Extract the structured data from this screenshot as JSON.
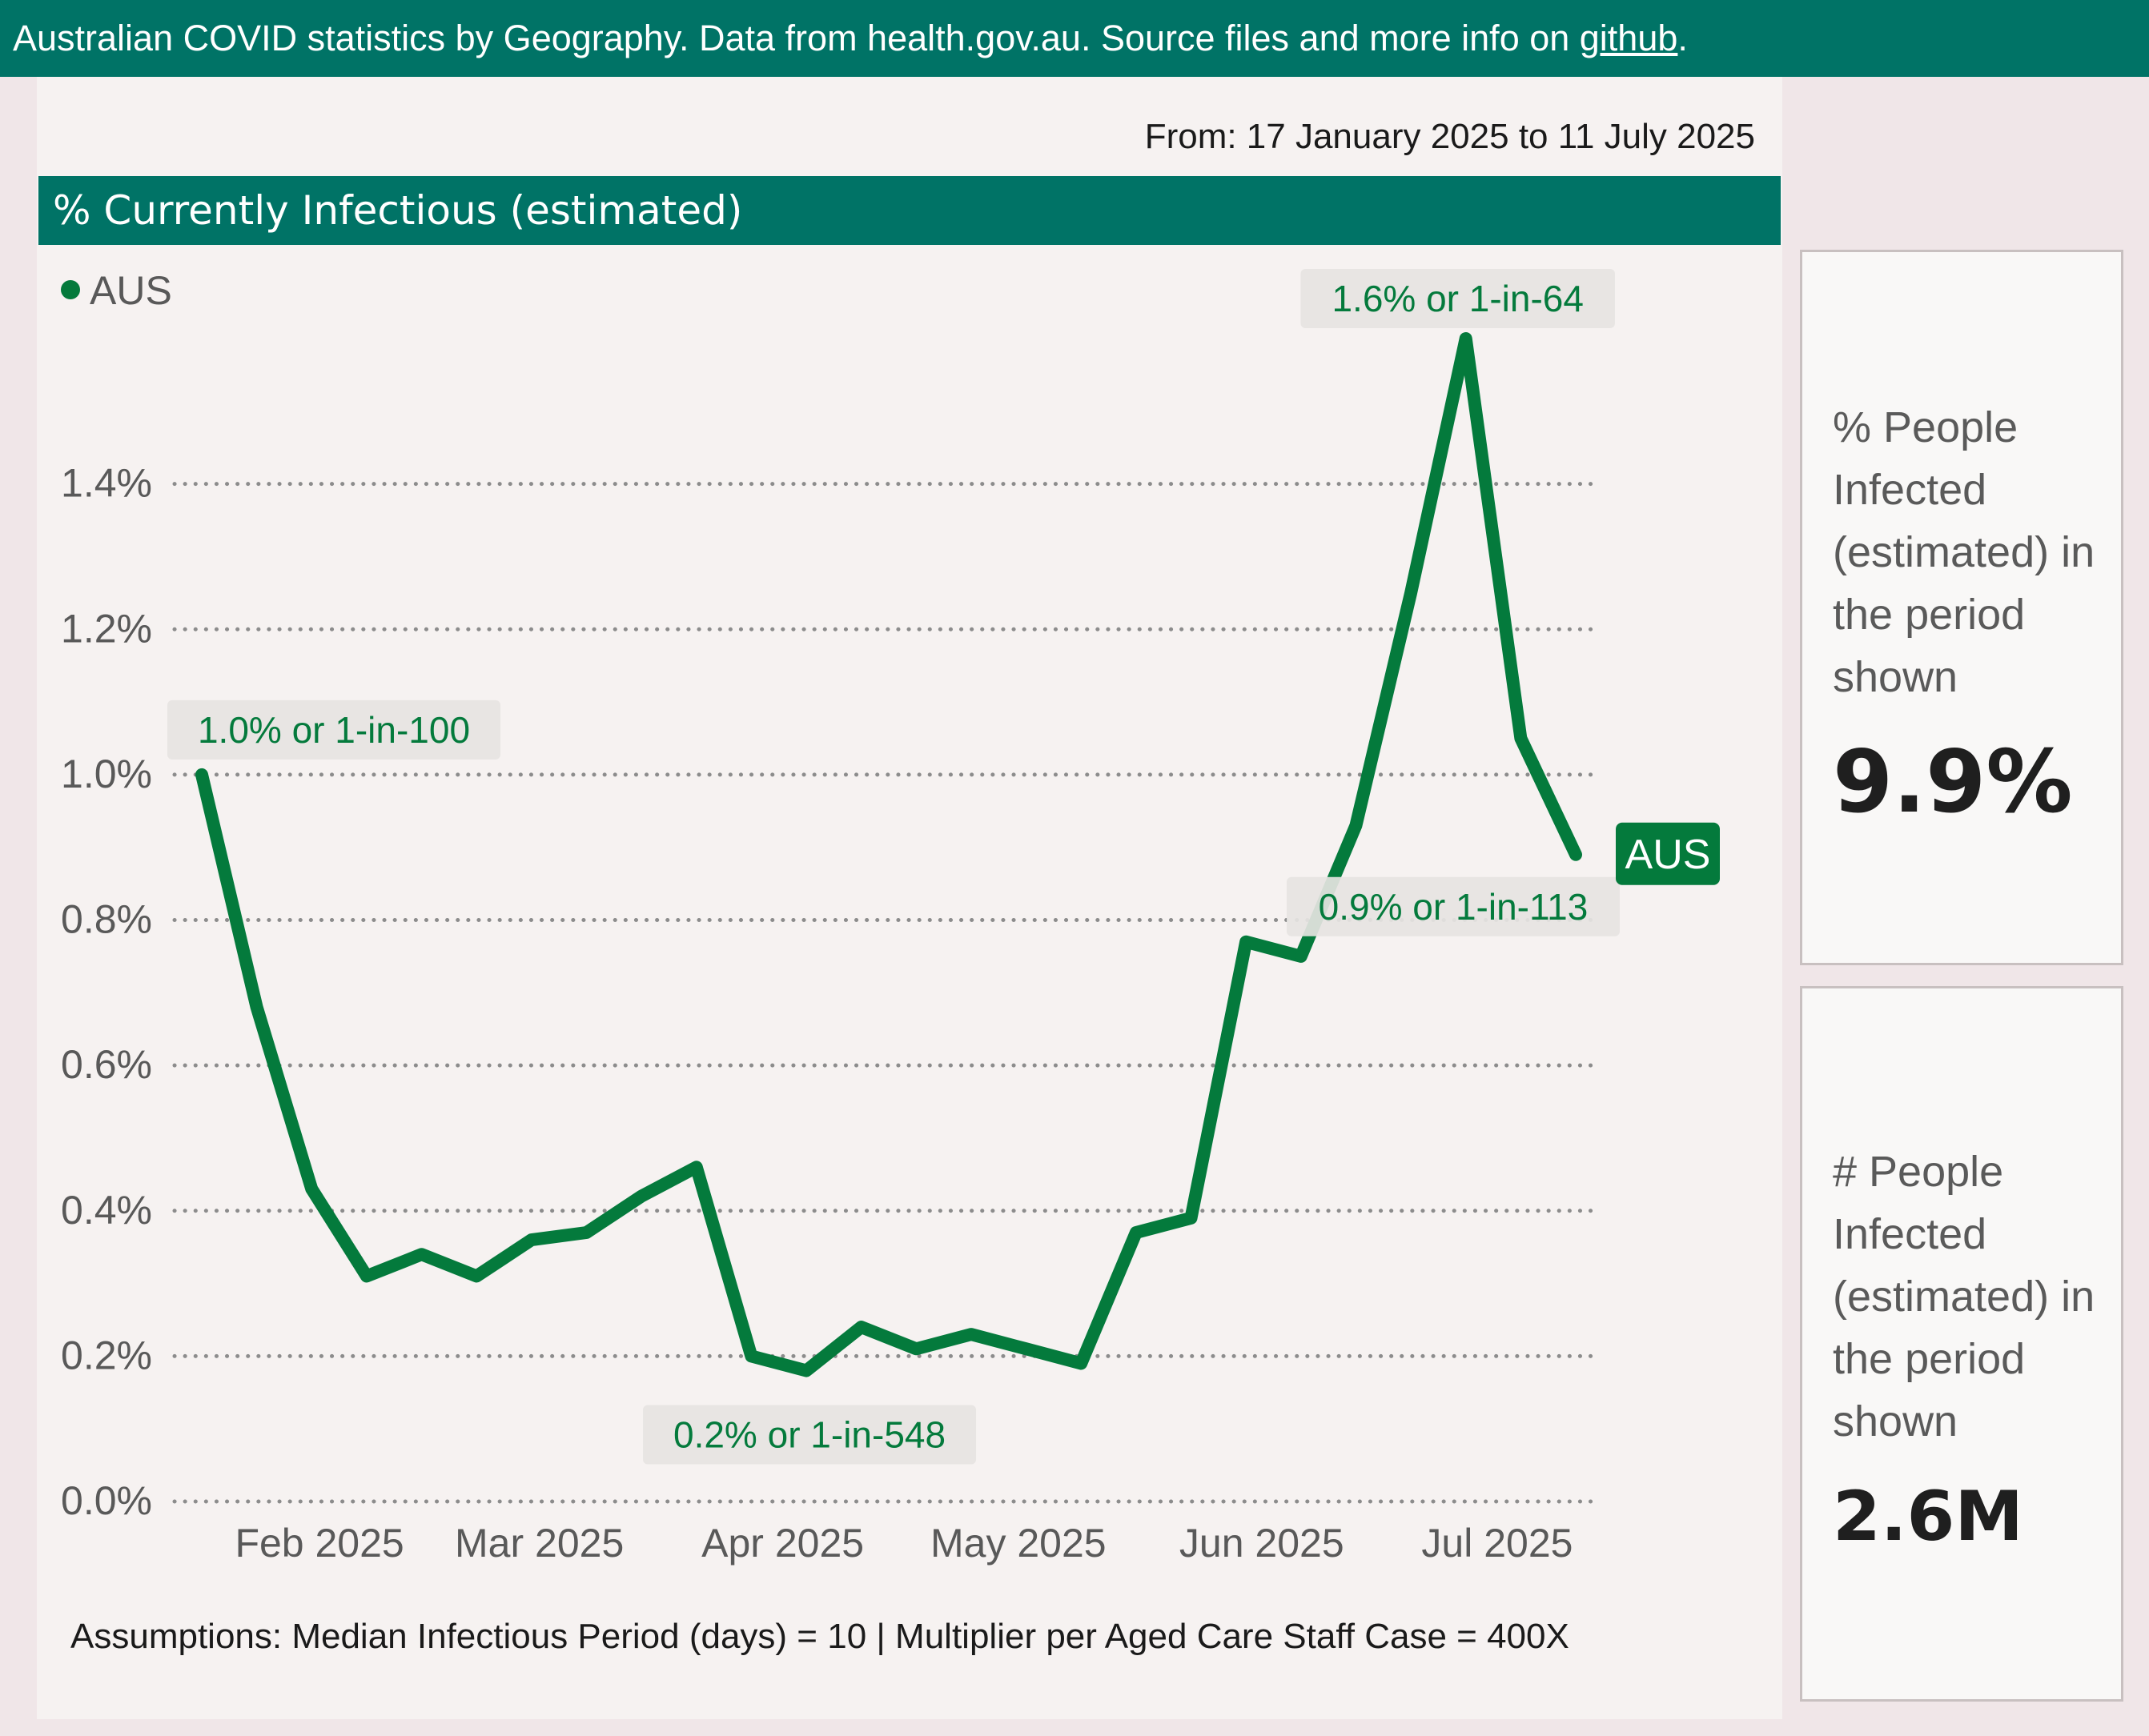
{
  "banner": {
    "text": "Australian COVID statistics by Geography. Data from health.gov.au. Source files and more info on ",
    "link_text": "github",
    "suffix": "."
  },
  "date_range": "From: 17 January 2025 to 11 July 2025",
  "chart_header": "% Currently Infectious (estimated)",
  "colors": {
    "series": "#047a3c",
    "header_bg": "#007366",
    "callout_bg": "#e6e4e2",
    "grid": "#8c8c8c",
    "axis_text": "#595959"
  },
  "chart_data": {
    "type": "line",
    "title": "% Currently Infectious (estimated)",
    "xlabel": "",
    "ylabel": "",
    "ylim": [
      0,
      1.6
    ],
    "yticks": [
      0.0,
      0.2,
      0.4,
      0.6,
      0.8,
      1.0,
      1.2,
      1.4
    ],
    "ytick_labels": [
      "0.0%",
      "0.2%",
      "0.4%",
      "0.6%",
      "0.8%",
      "1.0%",
      "1.2%",
      "1.4%"
    ],
    "xticks": [
      "2025-02-01",
      "2025-03-01",
      "2025-04-01",
      "2025-05-01",
      "2025-06-01",
      "2025-07-01"
    ],
    "xtick_labels": [
      "Feb 2025",
      "Mar 2025",
      "Apr 2025",
      "May 2025",
      "Jun 2025",
      "Jul 2025"
    ],
    "xlim": [
      "2025-01-17",
      "2025-07-11"
    ],
    "grid": true,
    "legend": "top-left",
    "series": [
      {
        "name": "AUS",
        "points": [
          [
            "2025-01-17",
            1.0
          ],
          [
            "2025-01-24",
            0.68
          ],
          [
            "2025-01-31",
            0.43
          ],
          [
            "2025-02-07",
            0.31
          ],
          [
            "2025-02-14",
            0.34
          ],
          [
            "2025-02-21",
            0.31
          ],
          [
            "2025-02-28",
            0.36
          ],
          [
            "2025-03-07",
            0.37
          ],
          [
            "2025-03-14",
            0.42
          ],
          [
            "2025-03-21",
            0.46
          ],
          [
            "2025-03-28",
            0.2
          ],
          [
            "2025-04-04",
            0.18
          ],
          [
            "2025-04-11",
            0.24
          ],
          [
            "2025-04-18",
            0.21
          ],
          [
            "2025-04-25",
            0.23
          ],
          [
            "2025-05-02",
            0.21
          ],
          [
            "2025-05-09",
            0.19
          ],
          [
            "2025-05-16",
            0.37
          ],
          [
            "2025-05-23",
            0.39
          ],
          [
            "2025-05-30",
            0.77
          ],
          [
            "2025-06-06",
            0.75
          ],
          [
            "2025-06-13",
            0.93
          ],
          [
            "2025-06-20",
            1.25
          ],
          [
            "2025-06-27",
            1.6
          ],
          [
            "2025-07-04",
            1.05
          ],
          [
            "2025-07-11",
            0.89
          ]
        ]
      }
    ],
    "annotations": [
      {
        "x": "2025-01-17",
        "y": 1.0,
        "label": "1.0% or 1-in-100"
      },
      {
        "x": "2025-04-04",
        "y": 0.18,
        "label": "0.2% or 1-in-548"
      },
      {
        "x": "2025-06-27",
        "y": 1.6,
        "label": "1.6% or 1-in-64"
      },
      {
        "x": "2025-07-11",
        "y": 0.89,
        "label": "0.9% or 1-in-113"
      }
    ],
    "end_label": "AUS"
  },
  "cards": [
    {
      "label": "% People Infected (estimated) in the period shown",
      "value": "9.9%"
    },
    {
      "label": "# People Infected (estimated) in the period shown",
      "value": "2.6M"
    }
  ],
  "assumptions": "Assumptions: Median Infectious Period (days) = 10 | Multiplier per Aged Care Staff Case = 400X"
}
